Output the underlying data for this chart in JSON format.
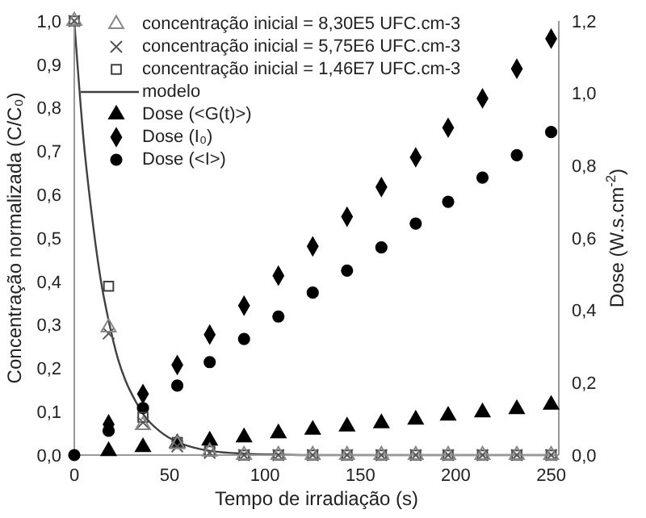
{
  "chart_data": {
    "type": "scatter",
    "xlabel": "Tempo de irradiação (s)",
    "ylabel": "Concentração normalizada (C/C₀)",
    "y2label": "Dose (W.s.cm$^{-2}$)",
    "x": [
      0,
      18,
      36,
      54,
      71,
      89,
      107,
      125,
      143,
      161,
      179,
      196,
      214,
      232,
      250
    ],
    "xlim": [
      0,
      254
    ],
    "xticks": [
      0,
      50,
      100,
      150,
      200,
      250
    ],
    "ylim": [
      0,
      1
    ],
    "yticks": [
      {
        "value": 0,
        "label": "0,0"
      },
      {
        "value": 0.1,
        "label": "0,1"
      },
      {
        "value": 0.2,
        "label": "0,2"
      },
      {
        "value": 0.3,
        "label": "0,3"
      },
      {
        "value": 0.4,
        "label": "0,4"
      },
      {
        "value": 0.5,
        "label": "0,5"
      },
      {
        "value": 0.6,
        "label": "0,6"
      },
      {
        "value": 0.7,
        "label": "0,7"
      },
      {
        "value": 0.8,
        "label": "0,8"
      },
      {
        "value": 0.9,
        "label": "0,9"
      },
      {
        "value": 1,
        "label": "1,0"
      }
    ],
    "y2lim": [
      0,
      1.2
    ],
    "y2ticks": [
      {
        "value": 0,
        "label": "0,0"
      },
      {
        "value": 0.2,
        "label": "0,2"
      },
      {
        "value": 0.4,
        "label": "0,4"
      },
      {
        "value": 0.6,
        "label": "0,6"
      },
      {
        "value": 0.8,
        "label": "0,8"
      },
      {
        "value": 1,
        "label": "1,0"
      },
      {
        "value": 1.2,
        "label": "1,2"
      }
    ],
    "grid": false,
    "legend": "top left",
    "series": [
      {
        "name": "concentração inicial = 8,30E5 UFC.cm-3",
        "color": "#888888",
        "marker": "triangle",
        "values": [
          1,
          0.294,
          0.069,
          0.025,
          0.008,
          0,
          0,
          0,
          0,
          0,
          0,
          0,
          0,
          0,
          0
        ]
      },
      {
        "name": "concentração inicial = 5,75E6 UFC.cm-3",
        "color": "#555555",
        "marker": "cross",
        "values": [
          1,
          0.28,
          0.075,
          0.02,
          0.005,
          0,
          0,
          0,
          0,
          0,
          0,
          0,
          0,
          0,
          0
        ]
      },
      {
        "name": "concentração inicial = 1,46E7 UFC.cm-3",
        "color": "#404040",
        "marker": "square",
        "values": [
          1,
          0.389,
          0.087,
          0.029,
          0.009,
          0,
          0,
          0,
          0,
          0,
          0,
          0,
          0,
          0,
          0
        ]
      },
      {
        "name": "modelo",
        "type": "line",
        "color": "#404040",
        "marker": "none",
        "x": [
          0,
          5,
          9,
          14,
          18,
          23,
          27,
          32,
          36,
          45,
          54,
          63,
          72,
          90,
          108,
          126,
          160,
          200,
          250
        ],
        "values": [
          1,
          0.72,
          0.56,
          0.4,
          0.31,
          0.22,
          0.17,
          0.125,
          0.095,
          0.054,
          0.03,
          0.017,
          0.009,
          0.003,
          0.001,
          0,
          0,
          0,
          0
        ]
      },
      {
        "name": "Dose (<G(t)>)",
        "color": "#000000",
        "marker": "triangle",
        "axis": "y2",
        "values": [
          null,
          0.011,
          0.022,
          0.033,
          0.04,
          0.049,
          0.06,
          0.07,
          0.079,
          0.088,
          0.098,
          0.109,
          0.118,
          0.127,
          0.139
        ]
      },
      {
        "name": "Dose (I₀)",
        "color": "#000000",
        "marker": "diamond",
        "axis": "y2",
        "values": [
          null,
          0.085,
          0.169,
          0.249,
          0.333,
          0.413,
          0.496,
          0.577,
          0.659,
          0.741,
          0.823,
          0.905,
          0.986,
          1.068,
          1.151
        ]
      },
      {
        "name": "Dose (<I>)",
        "color": "#000000",
        "marker": "circle",
        "axis": "y2",
        "values": [
          0,
          0.067,
          0.13,
          0.192,
          0.257,
          0.321,
          0.383,
          0.449,
          0.51,
          0.574,
          0.64,
          0.7,
          0.767,
          0.829,
          0.893
        ]
      }
    ]
  }
}
